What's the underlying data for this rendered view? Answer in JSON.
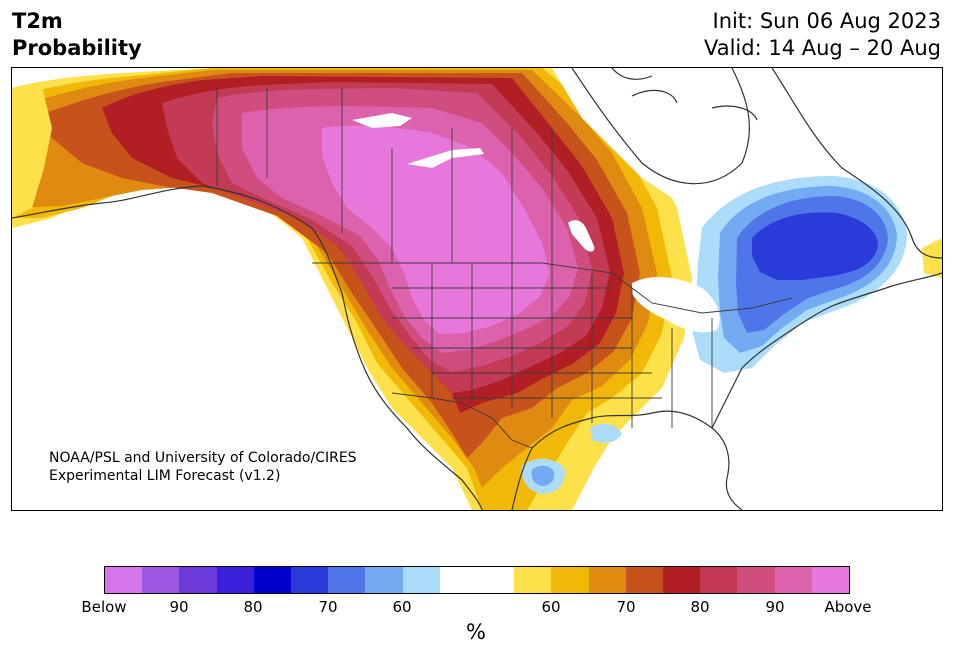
{
  "header": {
    "title_line1": "T2m",
    "title_line2": "Probability",
    "init_text": "Init: Sun 06 Aug 2023",
    "valid_text": "Valid: 14 Aug – 20 Aug"
  },
  "map": {
    "credit_line1": "NOAA/PSL and University of Colorado/CIRES",
    "credit_line2": "Experimental LIM Forecast (v1.2)"
  },
  "colorbar": {
    "colors": [
      "#d576ea",
      "#9b58e0",
      "#6b3ad8",
      "#3a1fd8",
      "#0000cc",
      "#2b3bd9",
      "#4f76e8",
      "#74aaf2",
      "#acdcfa",
      "#ffffff",
      "#ffffff",
      "#fee04a",
      "#f2b807",
      "#df8a10",
      "#c6521c",
      "#b11f24",
      "#c23a53",
      "#cf4e7f",
      "#dc62ad",
      "#e778db"
    ],
    "tick_labels": [
      "Below",
      "90",
      "80",
      "70",
      "60",
      "60",
      "70",
      "80",
      "90",
      "Above"
    ],
    "unit_label": "%"
  },
  "palette": {
    "white": "#ffffff",
    "lightblue": "#acdcfa",
    "blue1": "#74aaf2",
    "blue2": "#4f76e8",
    "blue3": "#2b3bd9",
    "yellow": "#fee04a",
    "gold": "#f2b807",
    "orange": "#df8a10",
    "burnt": "#c6521c",
    "red": "#b11f24",
    "crimson": "#c23a53",
    "rose": "#cf4e7f",
    "pink": "#dc62ad",
    "magenta": "#e778db",
    "coast": "#333333",
    "border": "#3c3c3c"
  }
}
